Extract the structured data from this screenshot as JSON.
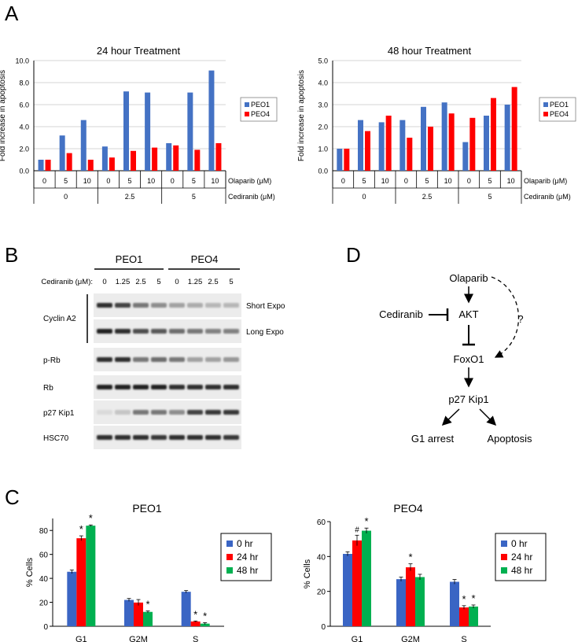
{
  "panel_labels": {
    "a": "A",
    "b": "B",
    "c": "C",
    "d": "D"
  },
  "colors": {
    "blue": "#4472C4",
    "red": "#FF0000",
    "green": "#00B050",
    "dark_blue": "#3A65C4"
  },
  "chart_data": [
    {
      "type": "bar",
      "title": "24 hour Treatment",
      "ylabel": "Fold increase in apoptosis",
      "ylim": [
        0,
        10
      ],
      "yticks": [
        "0.0",
        "2.0",
        "4.0",
        "6.0",
        "8.0",
        "10.0"
      ],
      "categories": [
        "0",
        "5",
        "10",
        "0",
        "5",
        "10",
        "0",
        "5",
        "10"
      ],
      "groups": [
        "0",
        "2.5",
        "5"
      ],
      "row_labels": {
        "olaparib": "Olaparib (μM)",
        "cediranib": "Cediranib (μM)"
      },
      "legend_position": "right",
      "series": [
        {
          "name": "PEO1",
          "values": [
            1.0,
            3.2,
            4.6,
            2.2,
            7.2,
            7.1,
            2.5,
            7.1,
            9.1
          ]
        },
        {
          "name": "PEO4",
          "values": [
            1.0,
            1.6,
            1.0,
            1.2,
            1.8,
            2.1,
            2.3,
            1.9,
            2.5
          ]
        }
      ]
    },
    {
      "type": "bar",
      "title": "48 hour Treatment",
      "ylabel": "Fold increase in apoptosis",
      "ylim": [
        0,
        5
      ],
      "yticks": [
        "0.0",
        "1.0",
        "2.0",
        "3.0",
        "4.0",
        "5.0"
      ],
      "categories": [
        "0",
        "5",
        "10",
        "0",
        "5",
        "10",
        "0",
        "5",
        "10"
      ],
      "groups": [
        "0",
        "2.5",
        "5"
      ],
      "row_labels": {
        "olaparib": "Olaparib (μM)",
        "cediranib": "Cediranib (μM)"
      },
      "legend_position": "right",
      "series": [
        {
          "name": "PEO1",
          "values": [
            1.0,
            2.3,
            2.2,
            2.3,
            2.9,
            3.1,
            1.3,
            2.5,
            3.0
          ]
        },
        {
          "name": "PEO4",
          "values": [
            1.0,
            1.8,
            2.5,
            1.5,
            2.0,
            2.6,
            2.4,
            3.3,
            3.8
          ]
        }
      ]
    },
    {
      "type": "bar",
      "title": "PEO1",
      "ylabel": "% Cells",
      "ylim": [
        0,
        90
      ],
      "yticks": [
        "0",
        "20",
        "40",
        "60",
        "80"
      ],
      "categories": [
        "G1",
        "G2M",
        "S"
      ],
      "legend_position": "right",
      "series": [
        {
          "name": "0 hr",
          "values": [
            45.5,
            22.0,
            28.8
          ],
          "errors": [
            1.5,
            1.2,
            1.0
          ],
          "marks": [
            "",
            "",
            ""
          ]
        },
        {
          "name": "24 hr",
          "values": [
            73.5,
            19.8,
            4.0
          ],
          "errors": [
            2.0,
            2.5,
            0.4
          ],
          "marks": [
            "*",
            "",
            "*"
          ]
        },
        {
          "name": "48 hr",
          "values": [
            84.0,
            12.0,
            2.2
          ],
          "errors": [
            0.6,
            0.8,
            0.8
          ],
          "marks": [
            "*",
            "*",
            "*"
          ]
        }
      ]
    },
    {
      "type": "bar",
      "title": "PEO4",
      "ylabel": "% Cells",
      "ylim": [
        0,
        60
      ],
      "yticks": [
        "0",
        "20",
        "40",
        "60"
      ],
      "categories": [
        "G1",
        "G2M",
        "S"
      ],
      "legend_position": "right",
      "series": [
        {
          "name": "0 hr",
          "values": [
            41.5,
            27.0,
            25.5
          ],
          "errors": [
            1.2,
            1.2,
            1.3
          ],
          "marks": [
            "",
            "",
            ""
          ]
        },
        {
          "name": "24 hr",
          "values": [
            49.2,
            33.8,
            10.8
          ],
          "errors": [
            3.0,
            2.0,
            1.0
          ],
          "marks": [
            "#",
            "*",
            "*"
          ]
        },
        {
          "name": "48 hr",
          "values": [
            54.8,
            28.2,
            11.3
          ],
          "errors": [
            1.5,
            1.6,
            0.9
          ],
          "marks": [
            "*",
            "",
            "*"
          ]
        }
      ]
    }
  ],
  "blot": {
    "header": {
      "group1": "PEO1",
      "group2": "PEO4"
    },
    "cediranib_label": "Cediranib (μM):",
    "doses": [
      "0",
      "1.25",
      "2.5",
      "5",
      "0",
      "1.25",
      "2.5",
      "5"
    ],
    "cyclin_label": "Cyclin A2",
    "rows": [
      {
        "label": "",
        "right_label": "Short Expo",
        "intensity": [
          0.9,
          0.8,
          0.55,
          0.45,
          0.35,
          0.3,
          0.25,
          0.25
        ]
      },
      {
        "label": "",
        "right_label": "Long Expo",
        "intensity": [
          0.95,
          0.9,
          0.75,
          0.7,
          0.6,
          0.55,
          0.5,
          0.5
        ]
      },
      {
        "label": "p-Rb",
        "right_label": "",
        "intensity": [
          0.9,
          0.9,
          0.55,
          0.6,
          0.55,
          0.35,
          0.35,
          0.4
        ]
      },
      {
        "label": "Rb",
        "right_label": "",
        "intensity": [
          0.95,
          0.95,
          0.95,
          0.95,
          0.9,
          0.9,
          0.9,
          0.9
        ]
      },
      {
        "label": "p27 Kip1",
        "right_label": "",
        "intensity": [
          0.08,
          0.18,
          0.55,
          0.55,
          0.45,
          0.8,
          0.85,
          0.85
        ]
      },
      {
        "label": "HSC70",
        "right_label": "",
        "intensity": [
          0.9,
          0.9,
          0.9,
          0.85,
          0.9,
          0.9,
          0.9,
          0.85
        ]
      }
    ]
  },
  "pathway": {
    "olaparib": "Olaparib",
    "akt": "AKT",
    "cediranib": "Cediranib",
    "question": "?",
    "foxo1": "FoxO1",
    "p27": "p27 Kip1",
    "g1": "G1 arrest",
    "apoptosis": "Apoptosis"
  }
}
